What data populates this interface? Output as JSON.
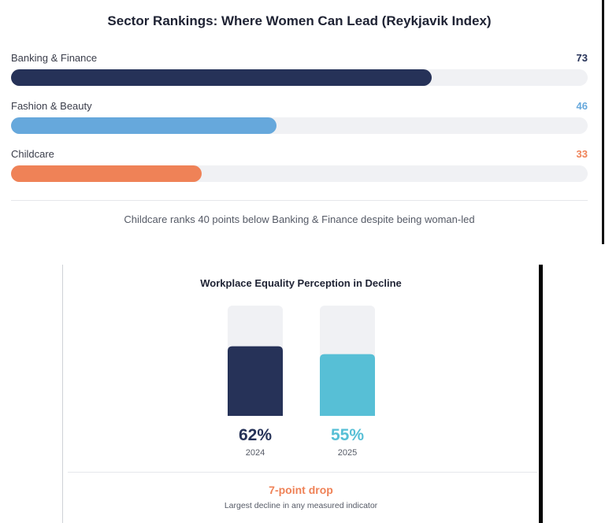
{
  "chart_data": [
    {
      "type": "bar",
      "orientation": "horizontal",
      "title": "Sector Rankings: Where Women Can Lead (Reykjavik Index)",
      "categories": [
        "Banking & Finance",
        "Fashion & Beauty",
        "Childcare"
      ],
      "values": [
        73,
        46,
        33
      ],
      "value_labels": [
        "73",
        "46",
        "33"
      ],
      "colors": [
        "#263258",
        "#66a8dc",
        "#ef8257"
      ],
      "xlim": [
        0,
        100
      ],
      "annotation": "Childcare ranks 40 points below Banking & Finance despite being woman-led",
      "grid": false,
      "legend": "none"
    },
    {
      "type": "bar",
      "orientation": "vertical",
      "title": "Workplace Equality Perception in Decline",
      "categories": [
        "2024",
        "2025"
      ],
      "values": [
        62,
        55
      ],
      "value_labels": [
        "62%",
        "55%"
      ],
      "colors": [
        "#263258",
        "#57bfd6"
      ],
      "ylim": [
        0,
        100
      ],
      "headline": "7-point drop",
      "annotation": "Largest decline in any measured indicator",
      "grid": false,
      "legend": "none"
    }
  ]
}
